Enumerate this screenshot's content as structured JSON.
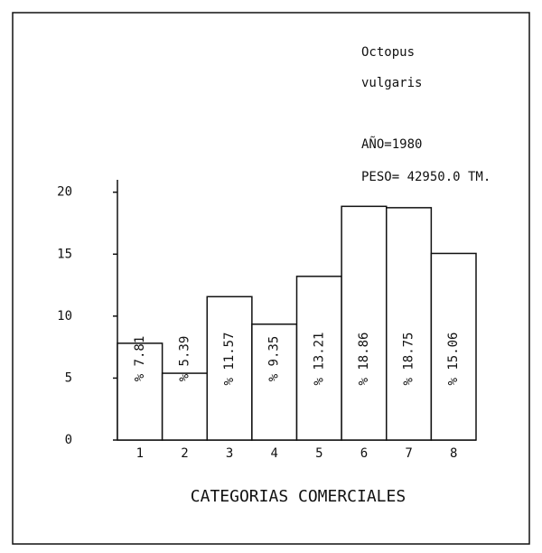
{
  "chart_data": {
    "type": "bar",
    "title": "Octopus",
    "subtitle": "vulgaris",
    "annotations": [
      "AÑO=1980",
      "PESO= 42950.0 TM."
    ],
    "x_label": "CATEGORIAS COMERCIALES",
    "categories": [
      "1",
      "2",
      "3",
      "4",
      "5",
      "6",
      "7",
      "8"
    ],
    "values": [
      7.81,
      5.39,
      11.57,
      9.35,
      13.21,
      18.86,
      18.75,
      15.06
    ],
    "value_labels": [
      "% 7.81",
      "% 5.39",
      "% 11.57",
      "% 9.35",
      "% 13.21",
      "% 18.86",
      "% 18.75",
      "% 15.06"
    ],
    "color": "#ffffff",
    "ylim": [
      0,
      21
    ],
    "yticks": [
      0,
      5,
      10,
      15,
      20
    ]
  }
}
